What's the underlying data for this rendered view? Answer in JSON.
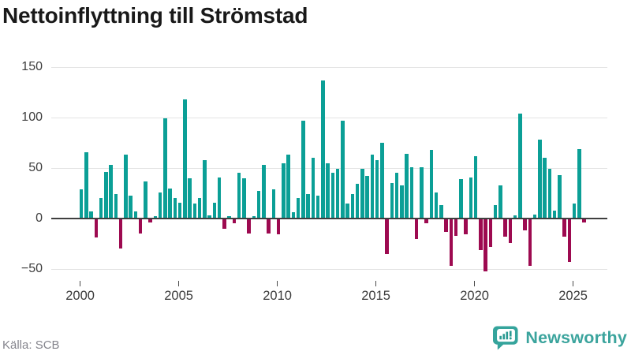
{
  "header": {
    "title": "Nettoinflyttning till Strömstad"
  },
  "footer": {
    "source": "Källa: SCB",
    "brand": "Newsworthy"
  },
  "colors": {
    "positive": "#0b9f96",
    "negative": "#9d0a50",
    "brand_teal": "#35a49c",
    "grid": "#e3e3e3",
    "axis": "#3f3f3f"
  },
  "icons": {
    "brand_logo": "bar-chart-speech-bubble-icon"
  },
  "chart_data": {
    "type": "bar",
    "title": "Nettoinflyttning till Strömstad",
    "frequency": "quarterly",
    "start_period": "2000 Q1",
    "end_period": "2025 Q3",
    "x_tick_labels": [
      "2000",
      "2005",
      "2010",
      "2015",
      "2020",
      "2025"
    ],
    "y_ticks": [
      150,
      100,
      50,
      0,
      -50
    ],
    "y_tick_labels": [
      "150",
      "100",
      "50",
      "0",
      "−50"
    ],
    "ylim": [
      -62,
      155
    ],
    "grid": true,
    "legend": "none",
    "values": [
      29,
      66,
      7,
      -19,
      20,
      46,
      53,
      24,
      -30,
      63,
      23,
      7,
      -15,
      37,
      -4,
      2,
      26,
      99,
      30,
      20,
      16,
      118,
      40,
      15,
      20,
      58,
      3,
      16,
      41,
      -10,
      2,
      -5,
      45,
      40,
      -15,
      2,
      27,
      53,
      -15,
      29,
      -16,
      55,
      63,
      6,
      20,
      97,
      24,
      60,
      23,
      137,
      55,
      45,
      49,
      97,
      15,
      24,
      34,
      49,
      42,
      63,
      58,
      75,
      -35,
      35,
      45,
      33,
      64,
      51,
      -20,
      51,
      -5,
      68,
      26,
      13,
      -13,
      -47,
      -17,
      39,
      -16,
      41,
      62,
      -31,
      -52,
      -28,
      13,
      33,
      -18,
      -24,
      3,
      104,
      -12,
      -47,
      4,
      78,
      60,
      49,
      8,
      43,
      -18,
      -43,
      15,
      69,
      -4
    ]
  }
}
